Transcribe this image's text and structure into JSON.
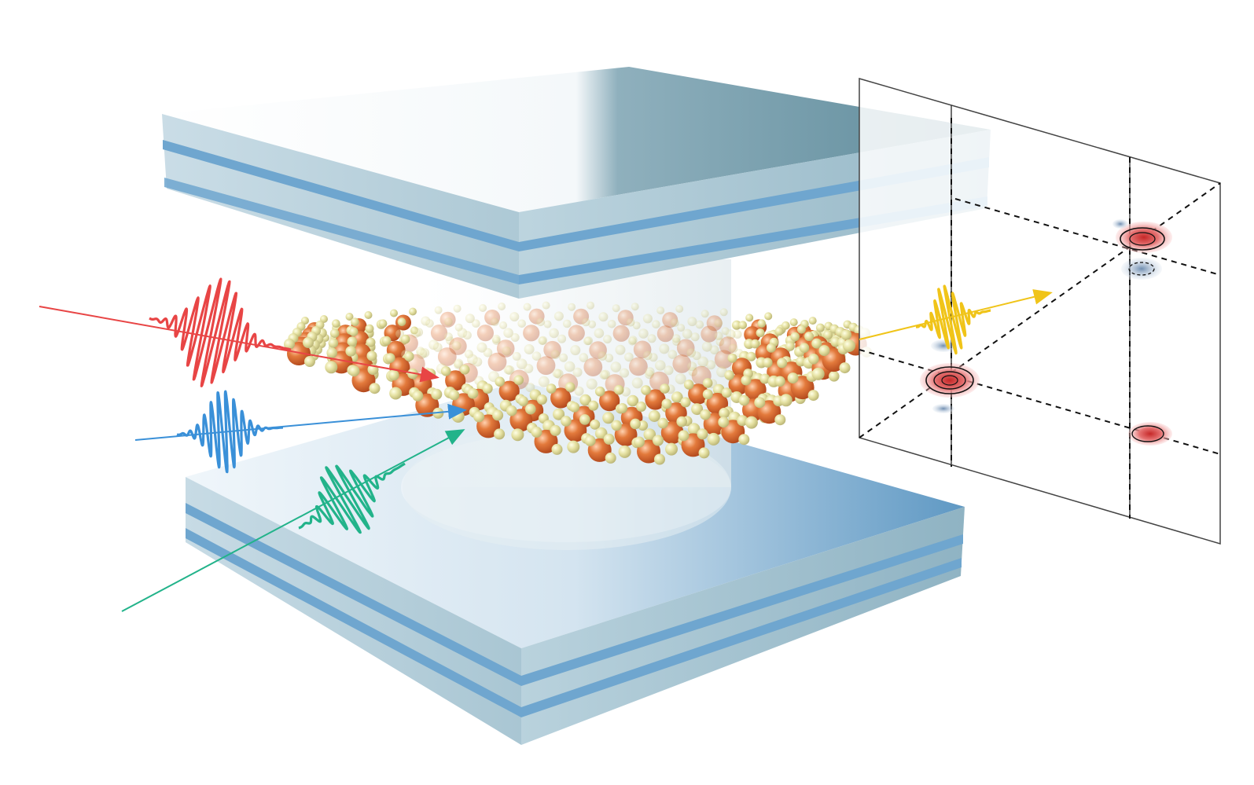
{
  "figure": {
    "kind": "schematic",
    "text_labels": []
  },
  "colors": {
    "background": "#ffffff",
    "mirror_light": "#dce9f0",
    "mirror_mid": "#a9c7d6",
    "mirror_stripe": "#6fa6cf",
    "mirror_dark": "#5f8a9c",
    "atom_large": "#d9662e",
    "atom_small": "#e6e2a3",
    "pulse_red": "#e84545",
    "pulse_blue": "#3a90d8",
    "pulse_green": "#22b38a",
    "pulse_yellow": "#f0c419",
    "peak_positive": "#d13b3b",
    "peak_negative": "#7b98b8",
    "grid_line": "#111111"
  },
  "pulses": [
    {
      "name": "red-pulse",
      "color_key": "pulse_red"
    },
    {
      "name": "blue-pulse",
      "color_key": "pulse_blue"
    },
    {
      "name": "green-pulse",
      "color_key": "pulse_green"
    },
    {
      "name": "signal-pulse",
      "color_key": "pulse_yellow"
    }
  ],
  "spectrum": {
    "peaks": [
      {
        "name": "diagonal-peak-lower",
        "sign": "positive"
      },
      {
        "name": "diagonal-peak-upper",
        "sign": "positive"
      },
      {
        "name": "cross-peak",
        "sign": "positive"
      },
      {
        "name": "negative-peak-upper",
        "sign": "negative"
      },
      {
        "name": "negative-peak-lower",
        "sign": "negative"
      }
    ]
  }
}
